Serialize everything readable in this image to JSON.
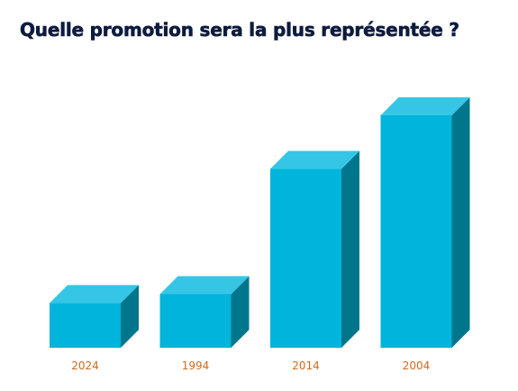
{
  "chart_data": {
    "type": "bar",
    "title": "Quelle promotion sera la plus représentée ?",
    "categories": [
      "2024",
      "1994",
      "2014",
      "2004"
    ],
    "values": [
      5,
      6,
      20,
      26
    ],
    "ylim": [
      0,
      26
    ],
    "xlabel": "",
    "ylabel": "",
    "grid": false,
    "legend": "none",
    "colors": {
      "front": "#00b4db",
      "top": "#35c6e6",
      "side": "#00768c",
      "tick_label": "#d2691e",
      "title": "#0d1b3f"
    }
  }
}
